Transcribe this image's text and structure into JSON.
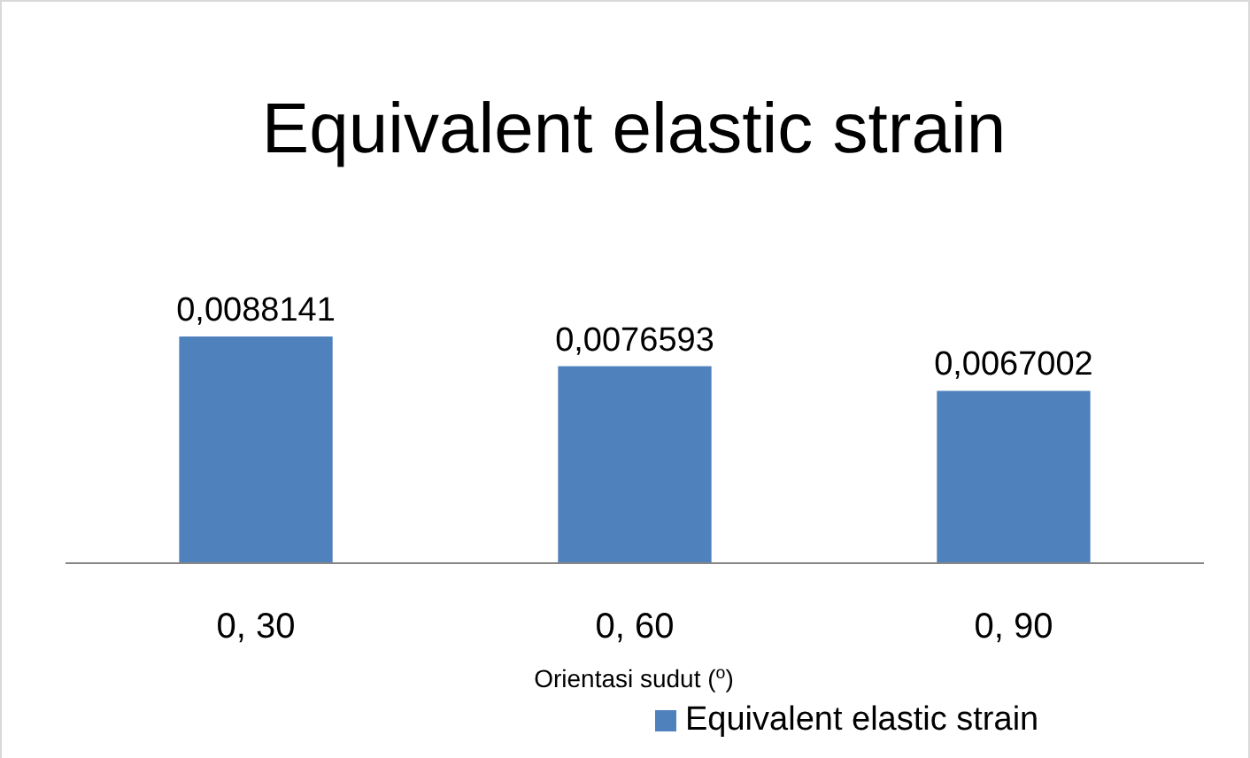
{
  "chart_data": {
    "type": "bar",
    "title": "Equivalent elastic strain",
    "xlabel": "Orientasi sudut ($^{o}$)",
    "categories": [
      "0, 30",
      "0, 60",
      "0, 90"
    ],
    "series": [
      {
        "name": "Equivalent elastic strain",
        "color": "#4f81bd",
        "values": [
          0.0088141,
          0.0076593,
          0.0067002
        ],
        "value_labels": [
          "0,0088141",
          "0,0076593",
          "0,0067002"
        ]
      }
    ],
    "tick_labels": "x",
    "legend": "bottom right"
  }
}
